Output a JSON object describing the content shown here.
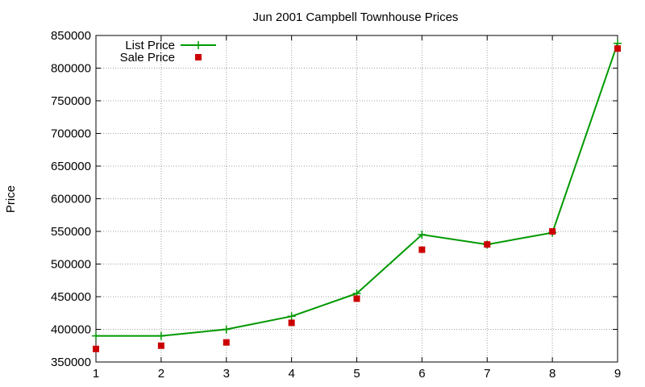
{
  "chart_data": {
    "type": "line",
    "title": "Jun 2001 Campbell Townhouse Prices",
    "xlabel": "",
    "ylabel": "Price",
    "xlim": [
      1,
      9
    ],
    "ylim": [
      350000,
      850000
    ],
    "x_ticks": [
      1,
      2,
      3,
      4,
      5,
      6,
      7,
      8,
      9
    ],
    "y_ticks": [
      350000,
      400000,
      450000,
      500000,
      550000,
      600000,
      650000,
      700000,
      750000,
      800000,
      850000
    ],
    "grid": true,
    "legend_position": "top-left",
    "series": [
      {
        "name": "List Price",
        "style": "line-plus",
        "color": "#009900",
        "x": [
          1,
          2,
          3,
          4,
          5,
          6,
          7,
          8,
          9
        ],
        "y": [
          390000,
          390000,
          400000,
          420000,
          455000,
          545000,
          530000,
          548000,
          838000
        ]
      },
      {
        "name": "Sale Price",
        "style": "square-points",
        "color": "#cc0000",
        "x": [
          1,
          2,
          3,
          4,
          5,
          6,
          7,
          8,
          9
        ],
        "y": [
          370000,
          375000,
          380000,
          410000,
          447000,
          522000,
          530000,
          550000,
          830000
        ]
      }
    ]
  }
}
